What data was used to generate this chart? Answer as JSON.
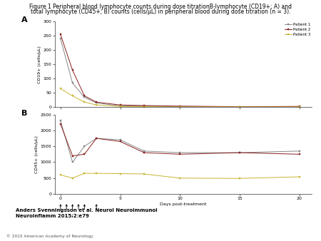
{
  "title_line1": "Figure 1 Peripheral blood lymphocyte counts during dose titrationB-lymphocyte (CD19+; A) and",
  "title_line2": "total lymphocyte (CD45+; B) counts (cells/µL) in peripheral blood during dose titration (n = 3).",
  "citation": "Anders Svenningsson et al. Neurol Neuroimmunol\nNeuroinflamm 2015;2:e79",
  "copyright": "© 2015 American Academy of Neurology",
  "panel_A": {
    "label": "A",
    "ylabel": "CD19+ (cells/µL)",
    "ylim": [
      0,
      300
    ],
    "yticks": [
      0,
      50,
      100,
      150,
      200,
      250,
      300
    ],
    "xlim": [
      -0.5,
      21
    ],
    "xticks": [
      0,
      5,
      10,
      15,
      20
    ],
    "patients": [
      {
        "x": [
          0,
          1,
          2,
          3,
          5,
          7,
          10,
          15,
          20
        ],
        "y": [
          240,
          85,
          35,
          15,
          5,
          4,
          2,
          1,
          2
        ],
        "color": "#888888",
        "label": "Patient 1"
      },
      {
        "x": [
          0,
          1,
          2,
          3,
          5,
          7,
          10,
          15,
          20
        ],
        "y": [
          255,
          130,
          40,
          18,
          8,
          6,
          4,
          2,
          3
        ],
        "color": "#8B2020",
        "label": "Patient 2"
      },
      {
        "x": [
          0,
          1,
          2,
          3,
          5,
          7,
          10,
          15,
          20
        ],
        "y": [
          65,
          40,
          18,
          8,
          3,
          2,
          1,
          1,
          1
        ],
        "color": "#C8B432",
        "label": "Patient 3"
      }
    ]
  },
  "panel_B": {
    "label": "B",
    "ylabel": "CD45+ (cells/µL)",
    "xlabel": "Days post-treatment",
    "ylim": [
      0,
      2500
    ],
    "yticks": [
      0,
      500,
      1000,
      1500,
      2000,
      2500
    ],
    "xlim": [
      -0.5,
      21
    ],
    "xticks": [
      0,
      5,
      10,
      15,
      20
    ],
    "patients": [
      {
        "x": [
          0,
          1,
          2,
          3,
          5,
          7,
          10,
          15,
          20
        ],
        "y": [
          2300,
          1000,
          1500,
          1750,
          1700,
          1350,
          1300,
          1300,
          1350
        ],
        "color": "#888888",
        "label": "Patient 1"
      },
      {
        "x": [
          0,
          1,
          2,
          3,
          5,
          7,
          10,
          15,
          20
        ],
        "y": [
          2200,
          1200,
          1250,
          1750,
          1650,
          1300,
          1250,
          1300,
          1250
        ],
        "color": "#8B2020",
        "label": "Patient 2"
      },
      {
        "x": [
          0,
          1,
          2,
          3,
          5,
          7,
          10,
          15,
          20
        ],
        "y": [
          600,
          500,
          650,
          650,
          640,
          630,
          500,
          490,
          540
        ],
        "color": "#C8B432",
        "label": "Patient 3"
      }
    ]
  },
  "arrow_x_positions": [
    0,
    0.5,
    1.0,
    1.5,
    2.0,
    3.0
  ],
  "background_color": "#FFFFFF"
}
